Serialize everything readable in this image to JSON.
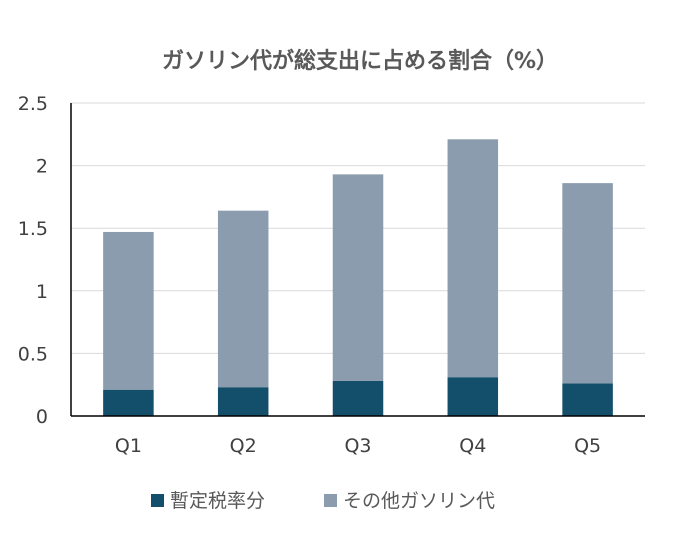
{
  "colors": {
    "tax": "#134f6b",
    "other": "#8a9cad",
    "grid": "#d9d9d9",
    "axis": "#000000",
    "text": "#404040",
    "title": "#595959"
  },
  "chart_data": {
    "type": "bar",
    "stacked": true,
    "title": "ガソリン代が総支出に占める割合（%）",
    "xlabel": "",
    "ylabel": "",
    "categories": [
      "Q1",
      "Q2",
      "Q3",
      "Q4",
      "Q5"
    ],
    "series": [
      {
        "name": "暫定税率分",
        "values": [
          0.21,
          0.23,
          0.28,
          0.31,
          0.26
        ]
      },
      {
        "name": "その他ガソリン代",
        "values": [
          1.26,
          1.41,
          1.65,
          1.9,
          1.6
        ]
      }
    ],
    "ylim": [
      0,
      2.5
    ],
    "yticks": [
      "0",
      "0.5",
      "1",
      "1.5",
      "2",
      "2.5"
    ],
    "grid": true,
    "legend_position": "bottom"
  }
}
